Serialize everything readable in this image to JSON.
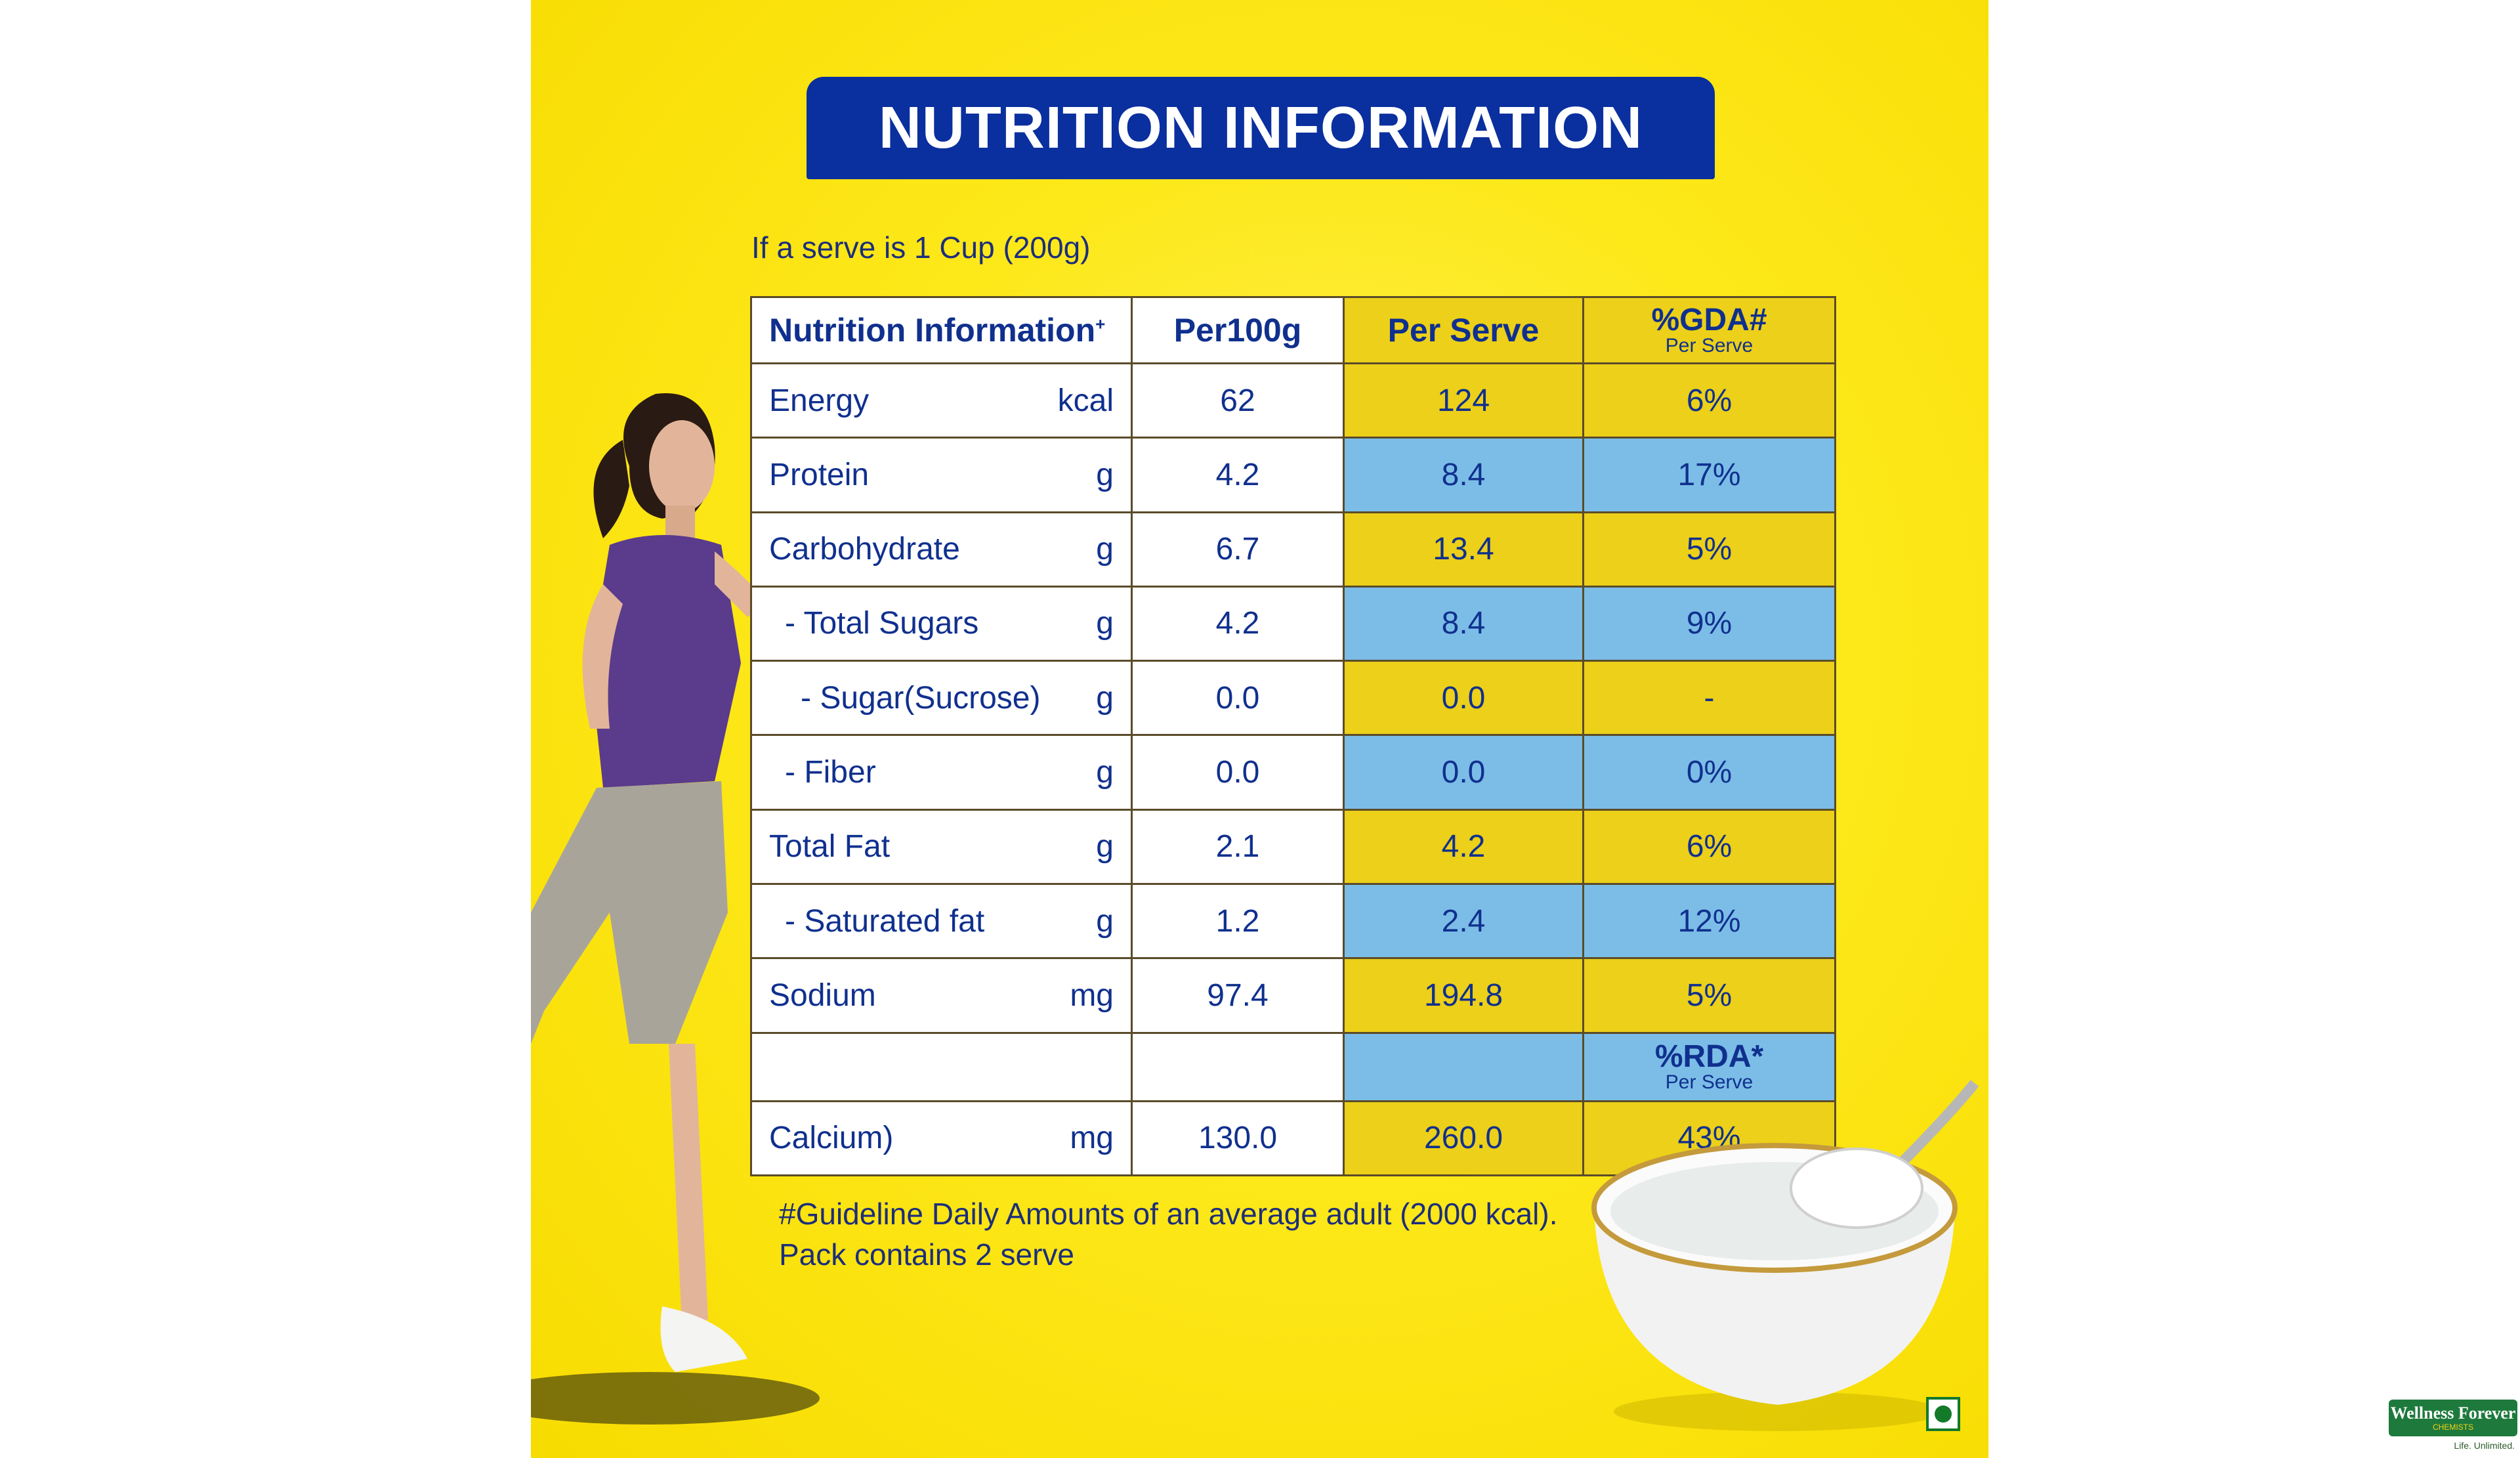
{
  "title": "NUTRITION INFORMATION",
  "serve_note": "If a serve is 1 Cup (200g)",
  "table": {
    "headers": {
      "col0": "Nutrition Information",
      "col0_sup": "+",
      "col1": "Per100g",
      "col2": "Per Serve",
      "col3": "%GDA#",
      "col3_sub": "Per Serve"
    },
    "rows": [
      {
        "name": "Energy",
        "unit": "kcal",
        "per100g": "62",
        "per_serve": "124",
        "gda": "6%"
      },
      {
        "name": "Protein",
        "unit": "g",
        "per100g": "4.2",
        "per_serve": "8.4",
        "gda": "17%"
      },
      {
        "name": "Carbohydrate",
        "unit": "g",
        "per100g": "6.7",
        "per_serve": "13.4",
        "gda": "5%"
      },
      {
        "name": "- Total Sugars",
        "unit": "g",
        "per100g": "4.2",
        "per_serve": "8.4",
        "gda": "9%"
      },
      {
        "name": "- Sugar(Sucrose)",
        "unit": "g",
        "per100g": "0.0",
        "per_serve": "0.0",
        "gda": "-"
      },
      {
        "name": "- Fiber",
        "unit": "g",
        "per100g": "0.0",
        "per_serve": "0.0",
        "gda": "0%"
      },
      {
        "name": "Total Fat",
        "unit": "g",
        "per100g": "2.1",
        "per_serve": "4.2",
        "gda": "6%"
      },
      {
        "name": "- Saturated fat",
        "unit": "g",
        "per100g": "1.2",
        "per_serve": "2.4",
        "gda": "12%"
      },
      {
        "name": "Sodium",
        "unit": "mg",
        "per100g": "97.4",
        "per_serve": "194.8",
        "gda": "5%"
      }
    ],
    "rda_header": "%RDA*",
    "rda_sub": "Per Serve",
    "calcium": {
      "name": "Calcium)",
      "unit": "mg",
      "per100g": "130.0",
      "per_serve": "260.0",
      "rda": "43%"
    }
  },
  "footnote_1": "#Guideline Daily Amounts of an average adult (2000 kcal).",
  "footnote_2": "Pack contains 2 serve",
  "logo": {
    "name": "Wellness Forever",
    "tagline": "CHEMISTS",
    "slogan": "Life. Unlimited."
  },
  "colors": {
    "banner": "#0a2f9e",
    "text": "#10308e",
    "yellow_cell": "#ecd019",
    "blue_cell": "#7bbde7",
    "background": "#fde81a"
  }
}
